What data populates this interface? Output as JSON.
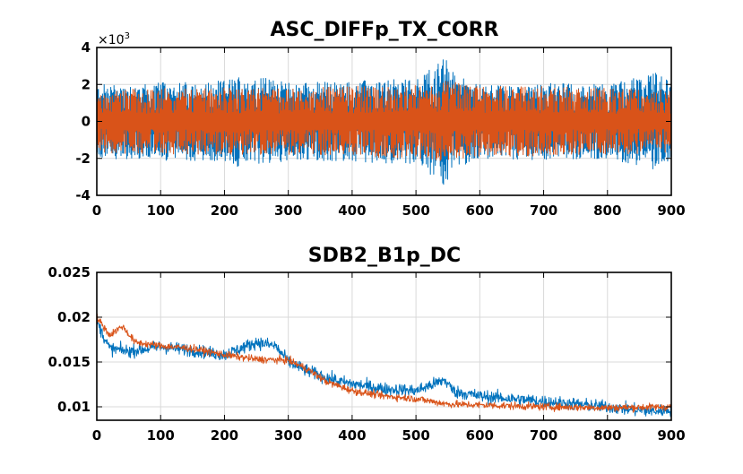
{
  "chart_data": [
    {
      "type": "line",
      "title": "ASC_DIFFp_TX_CORR",
      "xlim": [
        0,
        900
      ],
      "ylim": [
        -4,
        4
      ],
      "y_exponent": "-3",
      "x_ticks": [
        "0",
        "100",
        "200",
        "300",
        "400",
        "500",
        "600",
        "700",
        "800",
        "900"
      ],
      "y_ticks": [
        "-4",
        "-2",
        "0",
        "2",
        "4"
      ],
      "x_tick_values": [
        0,
        100,
        200,
        300,
        400,
        500,
        600,
        700,
        800,
        900
      ],
      "y_tick_values": [
        -4,
        -2,
        0,
        2,
        4
      ],
      "grid": true,
      "series": [
        {
          "color": "#0072BD",
          "envelope": [
            {
              "x": 0,
              "amp": 2.0
            },
            {
              "x": 100,
              "amp": 2.1
            },
            {
              "x": 200,
              "amp": 2.2
            },
            {
              "x": 230,
              "amp": 2.6
            },
            {
              "x": 300,
              "amp": 2.1
            },
            {
              "x": 400,
              "amp": 2.2
            },
            {
              "x": 500,
              "amp": 2.3
            },
            {
              "x": 545,
              "amp": 3.5
            },
            {
              "x": 560,
              "amp": 2.6
            },
            {
              "x": 600,
              "amp": 2.0
            },
            {
              "x": 700,
              "amp": 2.1
            },
            {
              "x": 800,
              "amp": 2.0
            },
            {
              "x": 880,
              "amp": 2.7
            },
            {
              "x": 900,
              "amp": 2.2
            }
          ]
        },
        {
          "color": "#D95319",
          "envelope": [
            {
              "x": 0,
              "amp": 1.7
            },
            {
              "x": 100,
              "amp": 1.8
            },
            {
              "x": 200,
              "amp": 1.8
            },
            {
              "x": 300,
              "amp": 1.8
            },
            {
              "x": 400,
              "amp": 1.9
            },
            {
              "x": 500,
              "amp": 2.0
            },
            {
              "x": 545,
              "amp": 2.2
            },
            {
              "x": 600,
              "amp": 1.9
            },
            {
              "x": 700,
              "amp": 1.9
            },
            {
              "x": 800,
              "amp": 1.8
            },
            {
              "x": 900,
              "amp": 1.7
            }
          ]
        }
      ]
    },
    {
      "type": "line",
      "title": "SDB2_B1p_DC",
      "xlim": [
        0,
        900
      ],
      "ylim": [
        0.0085,
        0.025
      ],
      "x_ticks": [
        "0",
        "100",
        "200",
        "300",
        "400",
        "500",
        "600",
        "700",
        "800",
        "900"
      ],
      "y_ticks": [
        "0.01",
        "0.015",
        "0.02",
        "0.025"
      ],
      "x_tick_values": [
        0,
        100,
        200,
        300,
        400,
        500,
        600,
        700,
        800,
        900
      ],
      "y_tick_values": [
        0.01,
        0.015,
        0.02,
        0.025
      ],
      "grid": true,
      "series": [
        {
          "color": "#0072BD",
          "points": [
            [
              0,
              0.0195
            ],
            [
              20,
              0.0165
            ],
            [
              50,
              0.0162
            ],
            [
              100,
              0.0167
            ],
            [
              150,
              0.0163
            ],
            [
              200,
              0.0158
            ],
            [
              250,
              0.0172
            ],
            [
              280,
              0.0168
            ],
            [
              300,
              0.015
            ],
            [
              330,
              0.014
            ],
            [
              380,
              0.0128
            ],
            [
              450,
              0.012
            ],
            [
              500,
              0.0118
            ],
            [
              545,
              0.013
            ],
            [
              560,
              0.0117
            ],
            [
              600,
              0.0112
            ],
            [
              700,
              0.0106
            ],
            [
              800,
              0.01
            ],
            [
              850,
              0.0096
            ],
            [
              880,
              0.0095
            ],
            [
              900,
              0.0097
            ]
          ],
          "noise": 0.0012
        },
        {
          "color": "#D95319",
          "points": [
            [
              0,
              0.02
            ],
            [
              20,
              0.018
            ],
            [
              40,
              0.019
            ],
            [
              60,
              0.0172
            ],
            [
              100,
              0.0168
            ],
            [
              150,
              0.0165
            ],
            [
              200,
              0.0158
            ],
            [
              250,
              0.0153
            ],
            [
              300,
              0.0152
            ],
            [
              330,
              0.0142
            ],
            [
              360,
              0.0128
            ],
            [
              400,
              0.0118
            ],
            [
              450,
              0.0112
            ],
            [
              500,
              0.0109
            ],
            [
              550,
              0.0103
            ],
            [
              600,
              0.0102
            ],
            [
              700,
              0.01
            ],
            [
              800,
              0.0099
            ],
            [
              900,
              0.01
            ]
          ],
          "noise": 0.0007
        }
      ]
    }
  ]
}
